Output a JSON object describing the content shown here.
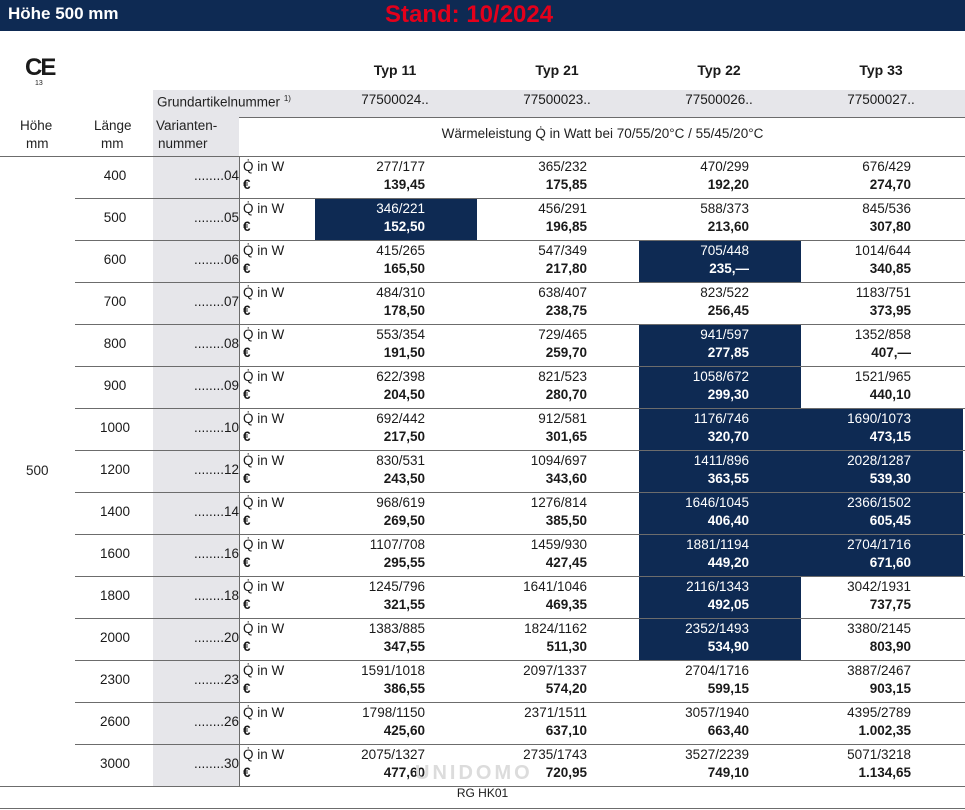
{
  "header": {
    "title": "Höhe 500 mm",
    "stand": "Stand: 10/2024"
  },
  "ce": {
    "mark": "CE",
    "number": "13"
  },
  "types": [
    "Typ 11",
    "Typ 21",
    "Typ 22",
    "Typ 33"
  ],
  "grund_label": "Grundartikelnummer",
  "grund_sup": "1)",
  "articles": [
    "77500024..",
    "77500023..",
    "77500026..",
    "77500027.."
  ],
  "col_labels": {
    "hoehe": "Höhe",
    "hoehe_unit": "mm",
    "laenge": "Länge",
    "laenge_unit": "mm",
    "variant1": "Varianten-",
    "variant2": "nummer",
    "waerme": "Wärmeleistung Q̇ in Watt bei 70/55/20°C / 55/45/20°C"
  },
  "hoehe_value": "500",
  "q_label": "Q̇ in W",
  "euro_label": "€",
  "rows": [
    {
      "laenge": "400",
      "var": "........04",
      "cells": [
        [
          "277/177",
          "139,45"
        ],
        [
          "365/232",
          "175,85"
        ],
        [
          "470/299",
          "192,20"
        ],
        [
          "676/429",
          "274,70"
        ]
      ],
      "hl": [
        false,
        false,
        false,
        false
      ]
    },
    {
      "laenge": "500",
      "var": "........05",
      "cells": [
        [
          "346/221",
          "152,50"
        ],
        [
          "456/291",
          "196,85"
        ],
        [
          "588/373",
          "213,60"
        ],
        [
          "845/536",
          "307,80"
        ]
      ],
      "hl": [
        true,
        false,
        false,
        false
      ]
    },
    {
      "laenge": "600",
      "var": "........06",
      "cells": [
        [
          "415/265",
          "165,50"
        ],
        [
          "547/349",
          "217,80"
        ],
        [
          "705/448",
          "235,—"
        ],
        [
          "1014/644",
          "340,85"
        ]
      ],
      "hl": [
        false,
        false,
        true,
        false
      ]
    },
    {
      "laenge": "700",
      "var": "........07",
      "cells": [
        [
          "484/310",
          "178,50"
        ],
        [
          "638/407",
          "238,75"
        ],
        [
          "823/522",
          "256,45"
        ],
        [
          "1183/751",
          "373,95"
        ]
      ],
      "hl": [
        false,
        false,
        false,
        false
      ]
    },
    {
      "laenge": "800",
      "var": "........08",
      "cells": [
        [
          "553/354",
          "191,50"
        ],
        [
          "729/465",
          "259,70"
        ],
        [
          "941/597",
          "277,85"
        ],
        [
          "1352/858",
          "407,—"
        ]
      ],
      "hl": [
        false,
        false,
        true,
        false
      ]
    },
    {
      "laenge": "900",
      "var": "........09",
      "cells": [
        [
          "622/398",
          "204,50"
        ],
        [
          "821/523",
          "280,70"
        ],
        [
          "1058/672",
          "299,30"
        ],
        [
          "1521/965",
          "440,10"
        ]
      ],
      "hl": [
        false,
        false,
        true,
        false
      ]
    },
    {
      "laenge": "1000",
      "var": "........10",
      "cells": [
        [
          "692/442",
          "217,50"
        ],
        [
          "912/581",
          "301,65"
        ],
        [
          "1176/746",
          "320,70"
        ],
        [
          "1690/1073",
          "473,15"
        ]
      ],
      "hl": [
        false,
        false,
        true,
        true
      ]
    },
    {
      "laenge": "1200",
      "var": "........12",
      "cells": [
        [
          "830/531",
          "243,50"
        ],
        [
          "1094/697",
          "343,60"
        ],
        [
          "1411/896",
          "363,55"
        ],
        [
          "2028/1287",
          "539,30"
        ]
      ],
      "hl": [
        false,
        false,
        true,
        true
      ]
    },
    {
      "laenge": "1400",
      "var": "........14",
      "cells": [
        [
          "968/619",
          "269,50"
        ],
        [
          "1276/814",
          "385,50"
        ],
        [
          "1646/1045",
          "406,40"
        ],
        [
          "2366/1502",
          "605,45"
        ]
      ],
      "hl": [
        false,
        false,
        true,
        true
      ]
    },
    {
      "laenge": "1600",
      "var": "........16",
      "cells": [
        [
          "1107/708",
          "295,55"
        ],
        [
          "1459/930",
          "427,45"
        ],
        [
          "1881/1194",
          "449,20"
        ],
        [
          "2704/1716",
          "671,60"
        ]
      ],
      "hl": [
        false,
        false,
        true,
        true
      ]
    },
    {
      "laenge": "1800",
      "var": "........18",
      "cells": [
        [
          "1245/796",
          "321,55"
        ],
        [
          "1641/1046",
          "469,35"
        ],
        [
          "2116/1343",
          "492,05"
        ],
        [
          "3042/1931",
          "737,75"
        ]
      ],
      "hl": [
        false,
        false,
        true,
        false
      ]
    },
    {
      "laenge": "2000",
      "var": "........20",
      "cells": [
        [
          "1383/885",
          "347,55"
        ],
        [
          "1824/1162",
          "511,30"
        ],
        [
          "2352/1493",
          "534,90"
        ],
        [
          "3380/2145",
          "803,90"
        ]
      ],
      "hl": [
        false,
        false,
        true,
        false
      ]
    },
    {
      "laenge": "2300",
      "var": "........23",
      "cells": [
        [
          "1591/1018",
          "386,55"
        ],
        [
          "2097/1337",
          "574,20"
        ],
        [
          "2704/1716",
          "599,15"
        ],
        [
          "3887/2467",
          "903,15"
        ]
      ],
      "hl": [
        false,
        false,
        false,
        false
      ]
    },
    {
      "laenge": "2600",
      "var": "........26",
      "cells": [
        [
          "1798/1150",
          "425,60"
        ],
        [
          "2371/1511",
          "637,10"
        ],
        [
          "3057/1940",
          "663,40"
        ],
        [
          "4395/2789",
          "1.002,35"
        ]
      ],
      "hl": [
        false,
        false,
        false,
        false
      ]
    },
    {
      "laenge": "3000",
      "var": "........30",
      "cells": [
        [
          "2075/1327",
          "477,60"
        ],
        [
          "2735/1743",
          "720,95"
        ],
        [
          "3527/2239",
          "749,10"
        ],
        [
          "5071/3218",
          "1.134,65"
        ]
      ],
      "hl": [
        false,
        false,
        false,
        false
      ]
    }
  ],
  "watermark": "UNIDOMO",
  "footer": "RG HK01"
}
